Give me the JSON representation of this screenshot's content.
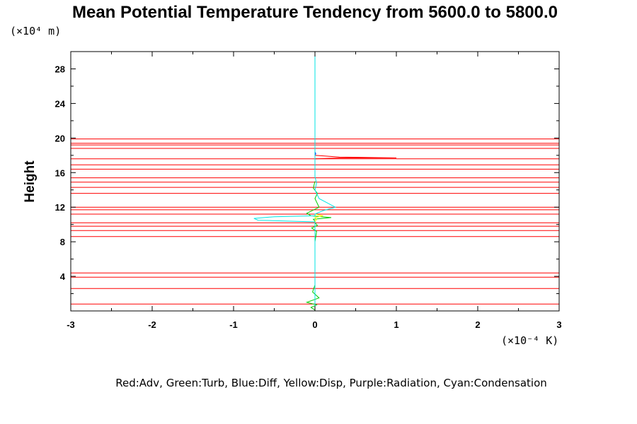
{
  "chart_data": {
    "type": "line",
    "title": "Mean Potential Temperature Tendency from 5600.0 to 5800.0",
    "ylabel": "Height",
    "xlabel": "",
    "x_unit": "(×10⁻⁴ K)",
    "y_unit": "(×10⁴ m)",
    "xlim": [
      -3,
      3
    ],
    "ylim": [
      0,
      30
    ],
    "x_ticks": [
      -3,
      -2,
      -1,
      0,
      1,
      2,
      3
    ],
    "x_tick_labels": [
      "-3",
      "-2",
      "-1",
      "0",
      "1",
      "2",
      "3"
    ],
    "y_ticks": [
      4,
      8,
      12,
      16,
      20,
      24,
      28
    ],
    "y_tick_labels": [
      "4",
      "8",
      "12",
      "16",
      "20",
      "24",
      "28"
    ],
    "legend_text": "Red:Adv, Green:Turb, Blue:Diff, Yellow:Disp, Purple:Radiation, Cyan:Condensation",
    "grid": false,
    "series": [
      {
        "name": "Adv",
        "color": "#ff0000",
        "horizontal_levels": [
          0.8,
          2.6,
          3.9,
          4.4,
          8.6,
          9.3,
          9.8,
          10.2,
          11.2,
          11.7,
          12.0,
          13.6,
          14.3,
          14.9,
          15.4,
          16.4,
          16.9,
          17.6,
          18.8,
          19.2,
          19.4,
          19.9
        ],
        "x": [
          0.0,
          0.0,
          0.3,
          1.0,
          0.3,
          0.0,
          0.0
        ],
        "y": [
          17.2,
          17.6,
          17.7,
          17.7,
          17.8,
          18.0,
          18.5
        ]
      },
      {
        "name": "Turb",
        "color": "#00cc00",
        "x": [
          0.0,
          -0.05,
          0.02,
          -0.1,
          0.05,
          -0.03,
          0.0,
          0.0,
          0.02,
          -0.04,
          0.03,
          0.0,
          0.0,
          -0.02,
          0.2,
          -0.05,
          -0.1,
          0.05,
          0.0,
          0.03,
          -0.02,
          0.0
        ],
        "y": [
          0.1,
          0.4,
          0.7,
          1.0,
          1.5,
          2.2,
          3.0,
          8.0,
          9.2,
          9.6,
          9.9,
          10.2,
          10.4,
          10.6,
          10.8,
          11.0,
          11.3,
          12.0,
          13.0,
          13.6,
          14.2,
          15.0
        ]
      },
      {
        "name": "Disp",
        "color": "#ffff00",
        "x": [
          0.0,
          0.02,
          0.0,
          0.1,
          0.0
        ],
        "y": [
          10.3,
          10.6,
          10.8,
          11.0,
          11.2
        ]
      },
      {
        "name": "Diff",
        "color": "#0000ff",
        "x": [
          0.0,
          0.01,
          0.0
        ],
        "y": [
          18.0,
          18.2,
          18.4
        ]
      },
      {
        "name": "Condensation",
        "color": "#00e5e5",
        "x": [
          0.0,
          0.0,
          0.0,
          -0.7,
          -0.75,
          -0.5,
          0.0,
          0.0,
          0.1,
          0.25,
          0.15,
          0.05,
          0.0,
          0.02,
          0.0,
          0.0,
          0.0,
          0.0
        ],
        "y": [
          0.0,
          8.0,
          10.3,
          10.5,
          10.7,
          10.9,
          11.0,
          11.2,
          11.6,
          12.0,
          12.5,
          13.0,
          14.0,
          14.8,
          15.5,
          20.0,
          25.0,
          30.0
        ]
      }
    ]
  }
}
